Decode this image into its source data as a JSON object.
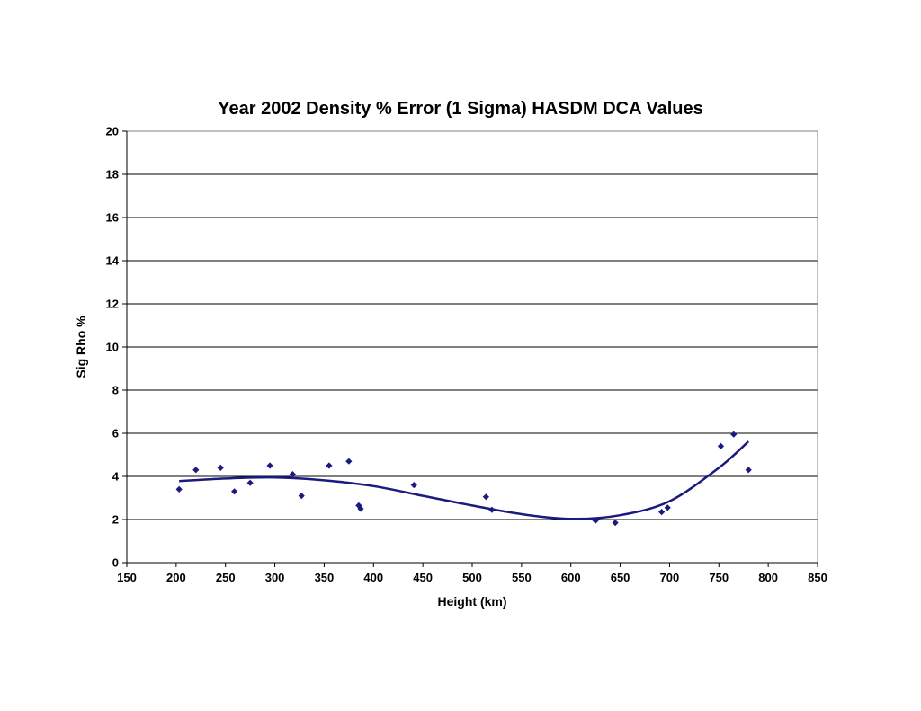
{
  "chart_data": {
    "type": "scatter",
    "title": "Year 2002 Density % Error (1 Sigma) HASDM DCA Values",
    "xlabel": "Height (km)",
    "ylabel": "Sig Rho %",
    "xlim": [
      150,
      850
    ],
    "ylim": [
      0,
      20
    ],
    "x_ticks": [
      150,
      200,
      250,
      300,
      350,
      400,
      450,
      500,
      550,
      600,
      650,
      700,
      750,
      800,
      850
    ],
    "y_ticks": [
      0,
      2,
      4,
      6,
      8,
      10,
      12,
      14,
      16,
      18,
      20
    ],
    "grid": "horizontal",
    "legend": "none",
    "colors": {
      "points": "#1a1a80",
      "trend": "#1a1a80",
      "grid": "#000000"
    },
    "series": [
      {
        "points": [
          {
            "x": 203,
            "y": 3.4
          },
          {
            "x": 220,
            "y": 4.3
          },
          {
            "x": 245,
            "y": 4.4
          },
          {
            "x": 259,
            "y": 3.3
          },
          {
            "x": 275,
            "y": 3.7
          },
          {
            "x": 295,
            "y": 4.5
          },
          {
            "x": 318,
            "y": 4.1
          },
          {
            "x": 327,
            "y": 3.1
          },
          {
            "x": 355,
            "y": 4.5
          },
          {
            "x": 375,
            "y": 4.7
          },
          {
            "x": 385,
            "y": 2.65
          },
          {
            "x": 387,
            "y": 2.5
          },
          {
            "x": 441,
            "y": 3.6
          },
          {
            "x": 514,
            "y": 3.05
          },
          {
            "x": 520,
            "y": 2.45
          },
          {
            "x": 625,
            "y": 1.95
          },
          {
            "x": 645,
            "y": 1.85
          },
          {
            "x": 692,
            "y": 2.35
          },
          {
            "x": 698,
            "y": 2.55
          },
          {
            "x": 752,
            "y": 5.4
          },
          {
            "x": 765,
            "y": 5.95
          },
          {
            "x": 780,
            "y": 4.3
          }
        ]
      }
    ],
    "trendline": {
      "type": "polynomial",
      "x_range": [
        203,
        780
      ],
      "points": [
        {
          "x": 203,
          "y": 3.78
        },
        {
          "x": 250,
          "y": 3.9
        },
        {
          "x": 300,
          "y": 3.95
        },
        {
          "x": 350,
          "y": 3.82
        },
        {
          "x": 400,
          "y": 3.55
        },
        {
          "x": 450,
          "y": 3.1
        },
        {
          "x": 500,
          "y": 2.65
        },
        {
          "x": 550,
          "y": 2.25
        },
        {
          "x": 600,
          "y": 2.03
        },
        {
          "x": 650,
          "y": 2.2
        },
        {
          "x": 700,
          "y": 2.85
        },
        {
          "x": 750,
          "y": 4.4
        },
        {
          "x": 780,
          "y": 5.62
        }
      ]
    }
  }
}
